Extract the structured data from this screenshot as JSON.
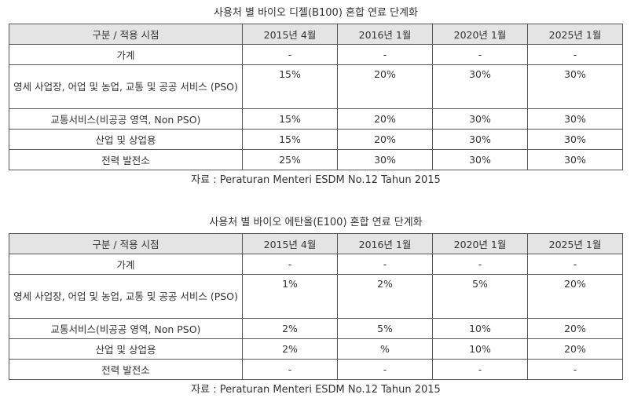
{
  "tables": [
    {
      "caption": "사용처 별 바이오 디젤(B100) 혼합 연료 단계화",
      "headers": [
        "구분 / 적용 시점",
        "2015년 4월",
        "2016년 1월",
        "2020년 1월",
        "2025년 1월"
      ],
      "rows": [
        {
          "label": "가계",
          "values": [
            "-",
            "-",
            "-",
            "-"
          ]
        },
        {
          "label": "영세 사업장, 어업 및 농업, 교통 및 공공 서비스 (PSO)",
          "values": [
            "15%",
            "20%",
            "30%",
            "30%"
          ]
        },
        {
          "label": "교통서비스(비공공 영역, Non PSO)",
          "values": [
            "15%",
            "20%",
            "30%",
            "30%"
          ]
        },
        {
          "label": "산업 및 상업용",
          "values": [
            "15%",
            "20%",
            "30%",
            "30%"
          ]
        },
        {
          "label": "전력 발전소",
          "values": [
            "25%",
            "30%",
            "30%",
            "30%"
          ]
        }
      ],
      "source": "자료 : Peraturan Menteri ESDM No.12 Tahun 2015"
    },
    {
      "caption": "사용처 별 바이오 에탄올(E100) 혼합 연료 단계화",
      "headers": [
        "구분 / 적용 시점",
        "2015년 4월",
        "2016년 1월",
        "2020년 1월",
        "2025년 1월"
      ],
      "rows": [
        {
          "label": "가계",
          "values": [
            "-",
            "-",
            "-",
            "-"
          ]
        },
        {
          "label": "영세 사업장, 어업 및 농업, 교통 및 공공 서비스 (PSO)",
          "values": [
            "1%",
            "2%",
            "5%",
            "20%"
          ]
        },
        {
          "label": "교통서비스(비공공 영역, Non PSO)",
          "values": [
            "2%",
            "5%",
            "10%",
            "20%"
          ]
        },
        {
          "label": "산업 및 상업용",
          "values": [
            "2%",
            "%",
            "10%",
            "20%"
          ]
        },
        {
          "label": "전력 발전소",
          "values": [
            "-",
            "-",
            "-",
            "-"
          ]
        }
      ],
      "source": "자료 : Peraturan Menteri ESDM No.12 Tahun 2015"
    }
  ]
}
